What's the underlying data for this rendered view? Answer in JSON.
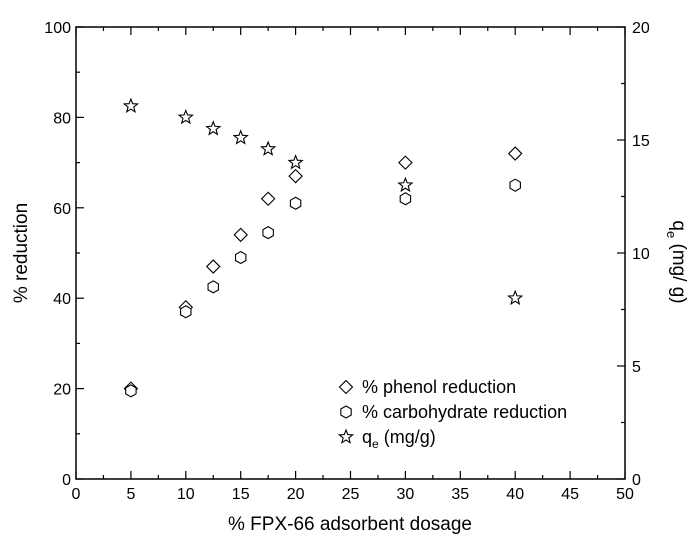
{
  "chart_data": {
    "type": "scatter",
    "title": "",
    "xlabel": "% FPX-66 adsorbent dosage",
    "ylabel": "% reduction",
    "y2label": {
      "main": "q",
      "sub": "e",
      "rest": " (mg/ g)"
    },
    "xlim": [
      0,
      50
    ],
    "ylim": [
      0,
      100
    ],
    "y2lim": [
      0,
      20
    ],
    "x_major_ticks": [
      0,
      5,
      10,
      15,
      20,
      25,
      30,
      35,
      40,
      45,
      50
    ],
    "y_major_ticks": [
      0,
      20,
      40,
      60,
      80,
      100
    ],
    "y2_major_ticks": [
      0,
      5,
      10,
      15,
      20
    ],
    "grid": false,
    "legend_position": "bottom-right",
    "series": [
      {
        "name": "% phenol reduction",
        "marker": "diamond",
        "axis": "left",
        "x": [
          5,
          10,
          12.5,
          15,
          17.5,
          20,
          30,
          40
        ],
        "y": [
          20,
          38,
          47,
          54,
          62,
          67,
          70,
          72
        ]
      },
      {
        "name": "% carbohydrate reduction",
        "marker": "hexagon",
        "axis": "left",
        "x": [
          5,
          10,
          12.5,
          15,
          17.5,
          20,
          30,
          40
        ],
        "y": [
          19.5,
          37,
          42.5,
          49,
          54.5,
          61,
          62,
          65
        ]
      },
      {
        "name": {
          "main": "q",
          "sub": "e",
          "rest": " (mg/g)"
        },
        "marker": "star",
        "axis": "right",
        "x": [
          5,
          10,
          12.5,
          15,
          17.5,
          20,
          30,
          40
        ],
        "y": [
          16.5,
          16.0,
          15.5,
          15.1,
          14.6,
          14.0,
          13.0,
          8.0
        ]
      }
    ]
  }
}
